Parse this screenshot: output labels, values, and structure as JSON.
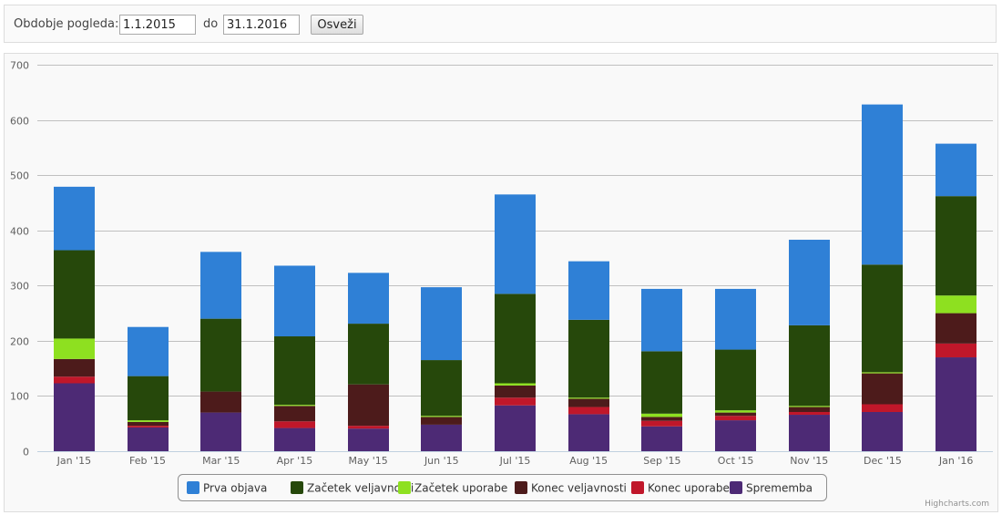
{
  "filter": {
    "label": "Obdobje pogleda:",
    "from_value": "1.1.2015",
    "to_label": "do",
    "to_value": "31.1.2016",
    "refresh_label": "Osveži"
  },
  "credits": "Highcharts.com",
  "chart_data": {
    "type": "bar",
    "stacked": true,
    "categories": [
      "Jan '15",
      "Feb '15",
      "Mar '15",
      "Apr '15",
      "May '15",
      "Jun '15",
      "Jul '15",
      "Aug '15",
      "Sep '15",
      "Oct '15",
      "Nov '15",
      "Dec '15",
      "Jan '16"
    ],
    "ylim": [
      0,
      700
    ],
    "yticks": [
      0,
      100,
      200,
      300,
      400,
      500,
      600,
      700
    ],
    "grid": true,
    "legend_placement": "bottom-center",
    "series": [
      {
        "name": "Sprememba",
        "color": "#4d2a75",
        "values": [
          123,
          43,
          70,
          42,
          41,
          48,
          83,
          67,
          45,
          56,
          66,
          71,
          170
        ]
      },
      {
        "name": "Konec uporabe",
        "color": "#c0172a",
        "values": [
          12,
          3,
          0,
          12,
          5,
          0,
          14,
          13,
          10,
          8,
          5,
          14,
          25
        ]
      },
      {
        "name": "Konec veljavnosti",
        "color": "#4d1b1b",
        "values": [
          32,
          7,
          38,
          28,
          75,
          14,
          22,
          15,
          7,
          6,
          9,
          56,
          55
        ]
      },
      {
        "name": "Začetek uporabe",
        "color": "#8ee020",
        "values": [
          37,
          3,
          0,
          2,
          0,
          2,
          4,
          2,
          6,
          4,
          2,
          2,
          32
        ]
      },
      {
        "name": "Začetek veljavnosti",
        "color": "#26480b",
        "values": [
          160,
          80,
          132,
          124,
          110,
          101,
          162,
          141,
          113,
          110,
          146,
          195,
          180
        ]
      },
      {
        "name": "Prva objava",
        "color": "#2f80d6",
        "values": [
          115,
          89,
          121,
          128,
          92,
          132,
          180,
          106,
          113,
          110,
          155,
          290,
          95
        ]
      }
    ],
    "legend_order": [
      "Prva objava",
      "Začetek veljavnosti",
      "Začetek uporabe",
      "Konec veljavnosti",
      "Konec uporabe",
      "Sprememba"
    ]
  }
}
